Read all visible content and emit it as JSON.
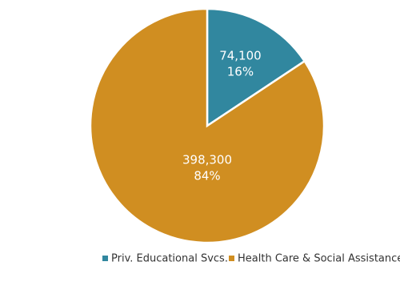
{
  "chart_data": {
    "type": "pie",
    "categories": [
      "Priv. Educational Svcs.",
      "Health Care & Social Assistance"
    ],
    "values": [
      74100,
      398300
    ],
    "value_labels": [
      "74,100",
      "398,300"
    ],
    "percents": [
      16,
      84
    ],
    "percent_labels": [
      "16%",
      "84%"
    ],
    "colors": [
      "#31879f",
      "#d08e21"
    ],
    "legend": "bottom"
  }
}
